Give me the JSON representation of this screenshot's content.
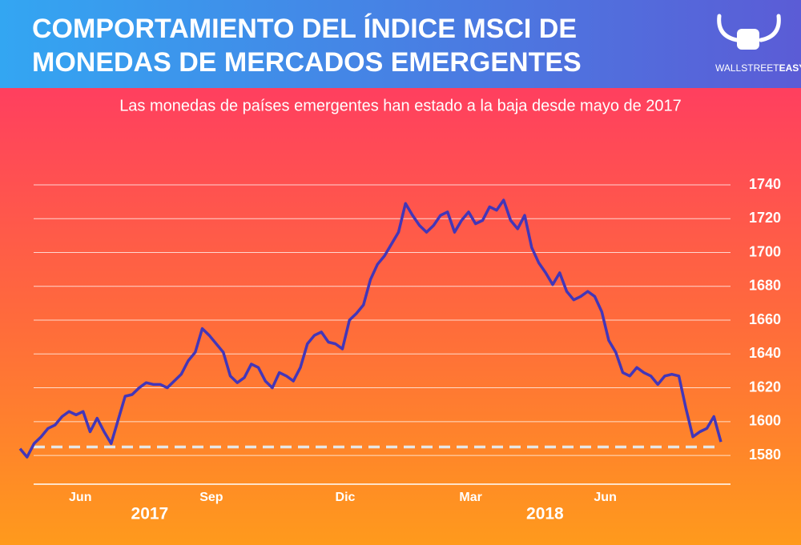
{
  "logo": {
    "part1": "WALLSTREET",
    "part2": "EASY"
  },
  "chart_data": {
    "type": "line",
    "title": [
      "COMPORTAMIENTO DEL ÍNDICE MSCI DE",
      "MONEDAS DE MERCADOS EMERGENTES"
    ],
    "subtitle": "Las monedas de países emergentes han estado a la baja desde mayo de 2017",
    "xlim": [
      0,
      100
    ],
    "xticks": [
      {
        "value": 8.6,
        "label": "Jun"
      },
      {
        "value": 27.3,
        "label": "Sep"
      },
      {
        "value": 46.4,
        "label": "Dic"
      },
      {
        "value": 64.3,
        "label": "Mar"
      },
      {
        "value": 83.5,
        "label": "Jun"
      }
    ],
    "x_group_labels": [
      {
        "value": 18.5,
        "label": "2017"
      },
      {
        "value": 74.9,
        "label": "2018"
      }
    ],
    "ylim": [
      1563,
      1740
    ],
    "yticks": [
      1580,
      1600,
      1620,
      1640,
      1660,
      1680,
      1700,
      1720,
      1740
    ],
    "grid": true,
    "reference_line": {
      "value": 1585,
      "style": "dashed",
      "color": "#e6e6e6"
    },
    "series": [
      {
        "color": "#4336b8",
        "values": [
          1584,
          1579,
          1587,
          1591,
          1596,
          1598,
          1603,
          1606,
          1604,
          1606,
          1594,
          1602,
          1594,
          1587,
          1601,
          1615,
          1616,
          1620,
          1623,
          1622,
          1622,
          1620,
          1624,
          1628,
          1636,
          1641,
          1655,
          1651,
          1646,
          1641,
          1627,
          1623,
          1626,
          1634,
          1632,
          1624,
          1620,
          1629,
          1627,
          1624,
          1632,
          1646,
          1651,
          1653,
          1647,
          1646,
          1643,
          1660,
          1664,
          1669,
          1684,
          1693,
          1698,
          1705,
          1712,
          1729,
          1722,
          1716,
          1712,
          1716,
          1722,
          1724,
          1712,
          1719,
          1724,
          1717,
          1719,
          1727,
          1725,
          1731,
          1719,
          1714,
          1722,
          1703,
          1694,
          1688,
          1681,
          1688,
          1677,
          1672,
          1674,
          1677,
          1674,
          1665,
          1648,
          1641,
          1629,
          1627,
          1632,
          1629,
          1627,
          1622,
          1627,
          1628,
          1627,
          1608,
          1591,
          1594,
          1596,
          1603,
          1588
        ]
      }
    ]
  }
}
